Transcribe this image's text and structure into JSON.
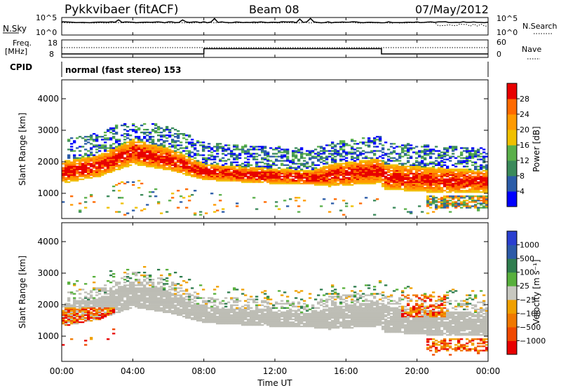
{
  "header": {
    "station": "Pykkvibaer (fitACF)",
    "beam": "Beam 08",
    "date": "07/May/2012"
  },
  "strip_labels": {
    "nsky": "N.Sky",
    "freq_line1": "Freq.",
    "freq_line2": "[MHz]",
    "cpid": "CPID",
    "nsearch": "N.Search",
    "nave": "Nave",
    "nsky_ticks": [
      "10^5",
      "10^0"
    ],
    "nsearch_ticks": [
      "10^5",
      "10^0"
    ],
    "freq_ticks": [
      "18",
      "8"
    ],
    "nave_ticks": [
      "60",
      "0"
    ]
  },
  "cpid_text": "normal (fast stereo) 153",
  "colors": {
    "power": [
      "#0000ff",
      "#2b5ca8",
      "#3a8a5a",
      "#55b048",
      "#93cc2e",
      "#e8cf0c",
      "#ff9a00",
      "#ff6a00",
      "#ff2c00",
      "#e60000"
    ],
    "velocity": [
      "#2a3fd0",
      "#2c5aa8",
      "#2f7d4e",
      "#58b03c",
      "#c8c8c0",
      "#f0a000",
      "#f07800",
      "#f04800",
      "#e80000"
    ],
    "ground_scatter": "#bdbdb5"
  },
  "chart_data": [
    {
      "type": "heatmap",
      "name": "power-panel",
      "ylabel": "Slant Range [km]",
      "yticks": [
        "1000",
        "2000",
        "3000",
        "4000"
      ],
      "ylim": [
        200,
        4600
      ],
      "xlim": [
        "00:00",
        "24:00"
      ],
      "colorbar": {
        "label": "Power [dB]",
        "ticks": [
          "4",
          "8",
          "12",
          "16",
          "20",
          "24",
          "28"
        ],
        "range": [
          0,
          32
        ]
      }
    },
    {
      "type": "heatmap",
      "name": "velocity-panel",
      "ylabel": "Slant Range [km]",
      "yticks": [
        "1000",
        "2000",
        "3000",
        "4000"
      ],
      "ylim": [
        200,
        4600
      ],
      "xlim": [
        "00:00",
        "24:00"
      ],
      "colorbar": {
        "label": "Velocity [m s⁻¹]",
        "ticks": [
          "1000",
          "500",
          "100",
          "25",
          "−25",
          "−100",
          "−500",
          "−1000"
        ]
      }
    },
    {
      "type": "line",
      "name": "frequency-strip",
      "ylim": [
        8,
        18
      ],
      "x": [
        "00:00",
        "08:00",
        "08:00",
        "18:00",
        "18:00",
        "24:00"
      ],
      "values": [
        10,
        10,
        13,
        13,
        10,
        10
      ]
    }
  ],
  "x_axis": {
    "ticks": [
      "00:00",
      "04:00",
      "08:00",
      "12:00",
      "16:00",
      "20:00",
      "00:00"
    ],
    "label": "Time UT"
  }
}
